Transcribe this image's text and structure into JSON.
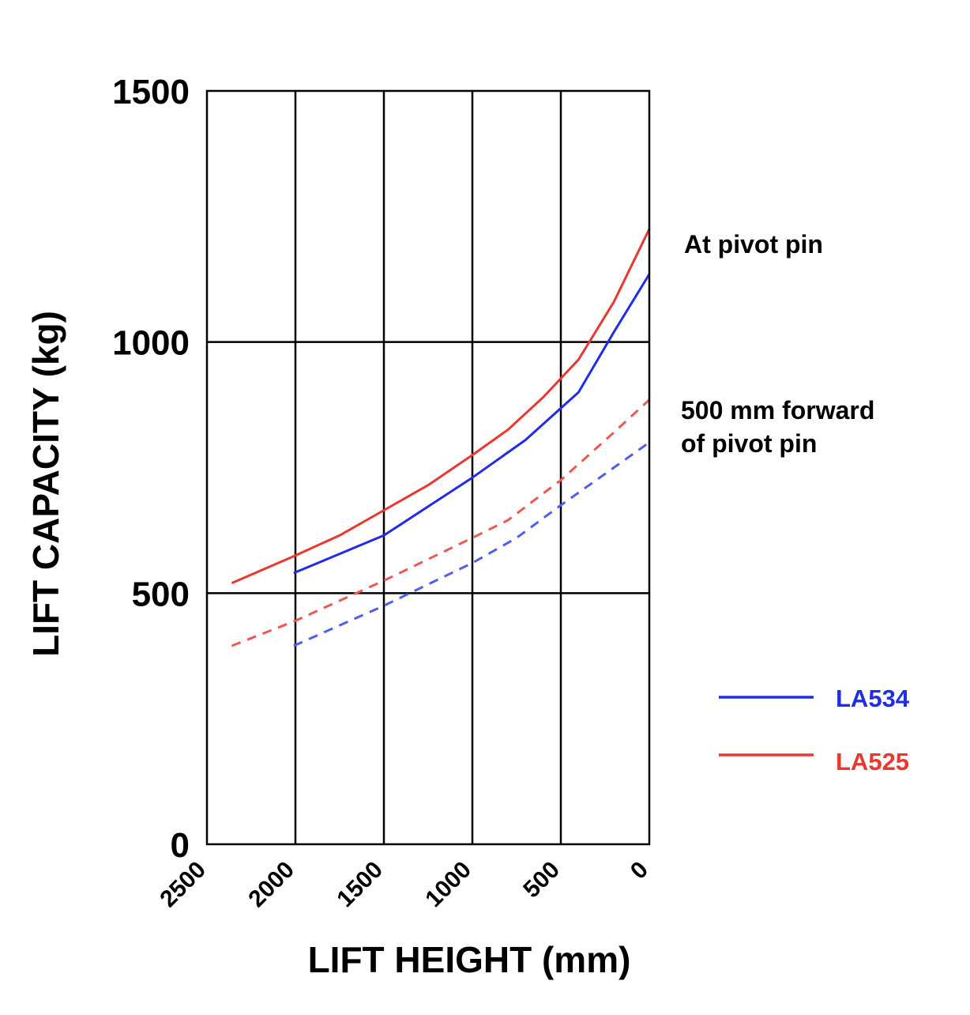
{
  "chart_data": {
    "type": "line",
    "xlabel": "LIFT HEIGHT (mm)",
    "ylabel": "LIFT CAPACITY (kg)",
    "xlim": [
      2500,
      0
    ],
    "ylim": [
      0,
      1500
    ],
    "x_reversed": true,
    "x_ticks": [
      "2500",
      "2000",
      "1500",
      "1000",
      "500",
      "0"
    ],
    "x_tick_values": [
      2500,
      2000,
      1500,
      1000,
      500,
      0
    ],
    "y_ticks": [
      "0",
      "500",
      "1000",
      "1500"
    ],
    "y_tick_values": [
      0,
      500,
      1000,
      1500
    ],
    "grid": true,
    "annotations": [
      {
        "text": "At pivot pin"
      },
      {
        "text": "500 mm forward of pivot pin",
        "lines": [
          "500 mm forward",
          "of pivot pin"
        ]
      }
    ],
    "legend": {
      "placement": "right",
      "entries": [
        {
          "name": "LA534",
          "color": "#1f2ee6"
        },
        {
          "name": "LA525",
          "color": "#e8382f"
        }
      ]
    },
    "series": [
      {
        "name": "LA534",
        "condition": "At pivot pin",
        "color": "#1f2ee6",
        "dashed": false,
        "x": [
          2010,
          1500,
          1000,
          700,
          400,
          200,
          0
        ],
        "y": [
          540,
          615,
          730,
          805,
          900,
          1020,
          1135
        ]
      },
      {
        "name": "LA534",
        "condition": "500 mm forward of pivot pin",
        "color": "#4f5df0",
        "dashed": true,
        "x": [
          2010,
          1500,
          1000,
          750,
          500,
          200,
          0
        ],
        "y": [
          395,
          475,
          560,
          610,
          675,
          750,
          800
        ]
      },
      {
        "name": "LA525",
        "condition": "At pivot pin",
        "color": "#e8382f",
        "dashed": false,
        "x": [
          2360,
          2000,
          1750,
          1500,
          1250,
          1000,
          800,
          600,
          400,
          200,
          0
        ],
        "y": [
          520,
          575,
          615,
          665,
          715,
          775,
          825,
          890,
          965,
          1080,
          1225
        ]
      },
      {
        "name": "LA525",
        "condition": "500 mm forward of pivot pin",
        "color": "#ea5a52",
        "dashed": true,
        "x": [
          2360,
          2000,
          1500,
          1000,
          800,
          500,
          200,
          0
        ],
        "y": [
          395,
          445,
          525,
          610,
          645,
          725,
          820,
          885
        ]
      }
    ]
  }
}
